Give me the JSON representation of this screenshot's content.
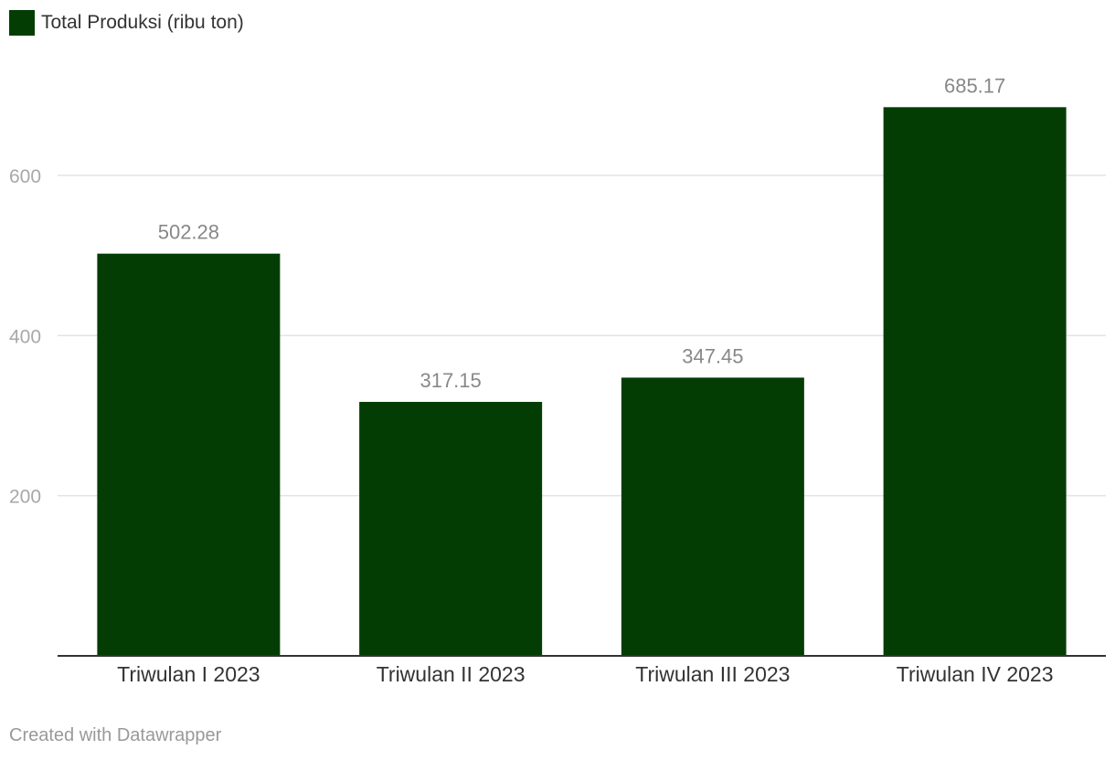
{
  "chart_data": {
    "type": "bar",
    "categories": [
      "Triwulan I 2023",
      "Triwulan II 2023",
      "Triwulan III 2023",
      "Triwulan IV 2023"
    ],
    "series": [
      {
        "name": "Total Produksi (ribu ton)",
        "values": [
          502.28,
          317.15,
          347.45,
          685.17
        ],
        "color": "#033d04"
      }
    ],
    "value_labels": [
      "502.28",
      "317.15",
      "347.45",
      "685.17"
    ],
    "y_ticks": [
      200,
      400,
      600
    ],
    "ylim": [
      0,
      700
    ],
    "grid": true,
    "legend_position": "top-left"
  },
  "legend": {
    "label": "Total Produksi (ribu ton)",
    "color": "#033d04"
  },
  "footer": {
    "credit": "Created with Datawrapper"
  }
}
